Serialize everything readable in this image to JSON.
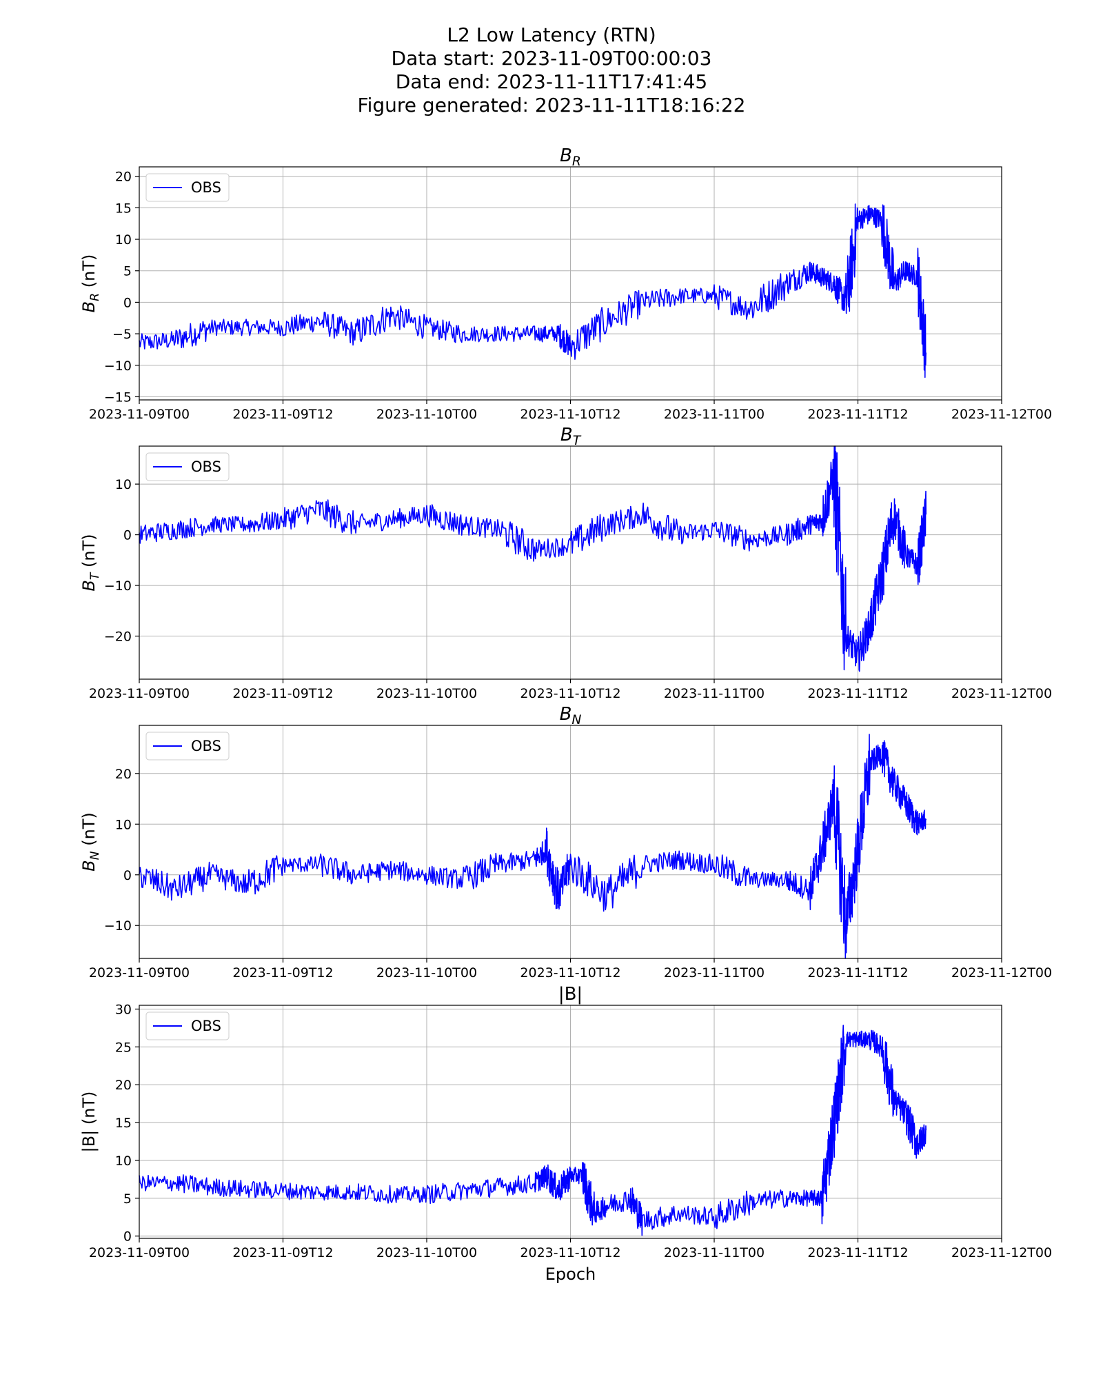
{
  "title_lines": [
    "L2 Low Latency (RTN)",
    "Data start: 2023-11-09T00:00:03",
    "Data end: 2023-11-11T17:41:45",
    "Figure generated: 2023-11-11T18:16:22"
  ],
  "colors": {
    "series": "#0000ff",
    "grid": "#b0b0b0",
    "axes": "#000000"
  },
  "chart_data": [
    {
      "type": "line",
      "title": "B_R",
      "ylabel": "B_R (nT)",
      "xlabel": "",
      "xlim": [
        "2023-11-09T00:00",
        "2023-11-12T00:00"
      ],
      "ylim": [
        -15.5,
        21.5
      ],
      "yticks": [
        -15,
        -10,
        -5,
        0,
        5,
        10,
        15,
        20
      ],
      "xticks": [
        "2023-11-09T00",
        "2023-11-09T12",
        "2023-11-10T00",
        "2023-11-10T12",
        "2023-11-11T00",
        "2023-11-11T12",
        "2023-11-12T00"
      ],
      "grid": true,
      "legend": "upper left",
      "series": [
        {
          "name": "OBS",
          "x": [
            "2023-11-09T00:00",
            "2023-11-09T03:00",
            "2023-11-09T06:00",
            "2023-11-09T09:00",
            "2023-11-09T12:00",
            "2023-11-09T15:00",
            "2023-11-09T18:00",
            "2023-11-09T21:00",
            "2023-11-10T00:00",
            "2023-11-10T03:00",
            "2023-11-10T06:00",
            "2023-11-10T09:00",
            "2023-11-10T11:00",
            "2023-11-10T12:00",
            "2023-11-10T15:00",
            "2023-11-10T18:00",
            "2023-11-10T21:00",
            "2023-11-11T00:00",
            "2023-11-11T03:00",
            "2023-11-11T06:00",
            "2023-11-11T08:00",
            "2023-11-11T09:00",
            "2023-11-11T10:00",
            "2023-11-11T11:00",
            "2023-11-11T12:00",
            "2023-11-11T13:00",
            "2023-11-11T14:00",
            "2023-11-11T15:00",
            "2023-11-11T16:00",
            "2023-11-11T17:00",
            "2023-11-11T17:41"
          ],
          "y": [
            -6.5,
            -6,
            -4,
            -4,
            -4,
            -3,
            -5,
            -2,
            -4,
            -5,
            -5,
            -5,
            -5,
            -7,
            -3,
            0,
            1,
            1,
            -1,
            3,
            5,
            4,
            3,
            0,
            13,
            14,
            13,
            3,
            5,
            4,
            -8
          ]
        }
      ]
    },
    {
      "type": "line",
      "title": "B_T",
      "ylabel": "B_T (nT)",
      "xlabel": "",
      "xlim": [
        "2023-11-09T00:00",
        "2023-11-12T00:00"
      ],
      "ylim": [
        -28.5,
        17.5
      ],
      "yticks": [
        -20,
        -10,
        0,
        10
      ],
      "xticks": [
        "2023-11-09T00",
        "2023-11-09T12",
        "2023-11-10T00",
        "2023-11-10T12",
        "2023-11-11T00",
        "2023-11-11T12",
        "2023-11-12T00"
      ],
      "grid": true,
      "legend": "upper left",
      "series": [
        {
          "name": "OBS",
          "x": [
            "2023-11-09T00:00",
            "2023-11-09T03:00",
            "2023-11-09T06:00",
            "2023-11-09T09:00",
            "2023-11-09T12:00",
            "2023-11-09T15:00",
            "2023-11-09T18:00",
            "2023-11-09T21:00",
            "2023-11-10T00:00",
            "2023-11-10T03:00",
            "2023-11-10T06:00",
            "2023-11-10T09:00",
            "2023-11-10T12:00",
            "2023-11-10T15:00",
            "2023-11-10T18:00",
            "2023-11-10T21:00",
            "2023-11-11T00:00",
            "2023-11-11T03:00",
            "2023-11-11T06:00",
            "2023-11-11T08:00",
            "2023-11-11T09:00",
            "2023-11-11T10:00",
            "2023-11-11T11:00",
            "2023-11-11T12:00",
            "2023-11-11T13:00",
            "2023-11-11T14:00",
            "2023-11-11T15:00",
            "2023-11-11T16:00",
            "2023-11-11T17:00",
            "2023-11-11T17:41"
          ],
          "y": [
            0,
            1,
            2,
            2,
            3,
            5,
            2,
            3,
            4,
            2,
            1,
            -3,
            -2,
            2,
            4,
            0,
            1,
            -1,
            0,
            2,
            3,
            12,
            -20,
            -24,
            -18,
            -8,
            4,
            -4,
            -6,
            4
          ]
        }
      ]
    },
    {
      "type": "line",
      "title": "B_N",
      "ylabel": "B_N (nT)",
      "xlabel": "",
      "xlim": [
        "2023-11-09T00:00",
        "2023-11-12T00:00"
      ],
      "ylim": [
        -16.5,
        29.5
      ],
      "yticks": [
        -10,
        0,
        10,
        20
      ],
      "xticks": [
        "2023-11-09T00",
        "2023-11-09T12",
        "2023-11-10T00",
        "2023-11-10T12",
        "2023-11-11T00",
        "2023-11-11T12",
        "2023-11-12T00"
      ],
      "grid": true,
      "legend": "upper left",
      "series": [
        {
          "name": "OBS",
          "x": [
            "2023-11-09T00:00",
            "2023-11-09T03:00",
            "2023-11-09T06:00",
            "2023-11-09T09:00",
            "2023-11-09T12:00",
            "2023-11-09T15:00",
            "2023-11-09T18:00",
            "2023-11-09T21:00",
            "2023-11-10T00:00",
            "2023-11-10T03:00",
            "2023-11-10T06:00",
            "2023-11-10T09:00",
            "2023-11-10T10:00",
            "2023-11-10T11:00",
            "2023-11-10T12:00",
            "2023-11-10T15:00",
            "2023-11-10T18:00",
            "2023-11-10T21:00",
            "2023-11-11T00:00",
            "2023-11-11T03:00",
            "2023-11-11T06:00",
            "2023-11-11T08:00",
            "2023-11-11T09:00",
            "2023-11-11T10:00",
            "2023-11-11T11:00",
            "2023-11-11T12:00",
            "2023-11-11T13:00",
            "2023-11-11T14:00",
            "2023-11-11T15:00",
            "2023-11-11T16:00",
            "2023-11-11T17:00",
            "2023-11-11T17:41"
          ],
          "y": [
            0,
            -3,
            0,
            -2,
            2,
            2,
            0,
            1,
            0,
            -1,
            2,
            3,
            5,
            -4,
            2,
            -4,
            2,
            3,
            2,
            -1,
            -1,
            -3,
            5,
            15,
            -10,
            5,
            22,
            24,
            18,
            14,
            10,
            11
          ]
        }
      ]
    },
    {
      "type": "line",
      "title": "|B|",
      "ylabel": "|B| (nT)",
      "xlabel": "Epoch",
      "xlim": [
        "2023-11-09T00:00",
        "2023-11-12T00:00"
      ],
      "ylim": [
        -0.3,
        30.5
      ],
      "yticks": [
        0,
        5,
        10,
        15,
        20,
        25,
        30
      ],
      "xticks": [
        "2023-11-09T00",
        "2023-11-09T12",
        "2023-11-10T00",
        "2023-11-10T12",
        "2023-11-11T00",
        "2023-11-11T12",
        "2023-11-12T00"
      ],
      "grid": true,
      "legend": "upper left",
      "series": [
        {
          "name": "OBS",
          "x": [
            "2023-11-09T00:00",
            "2023-11-09T03:00",
            "2023-11-09T06:00",
            "2023-11-09T09:00",
            "2023-11-09T12:00",
            "2023-11-09T15:00",
            "2023-11-09T18:00",
            "2023-11-09T21:00",
            "2023-11-10T00:00",
            "2023-11-10T03:00",
            "2023-11-10T06:00",
            "2023-11-10T09:00",
            "2023-11-10T10:00",
            "2023-11-10T11:00",
            "2023-11-10T12:00",
            "2023-11-10T13:00",
            "2023-11-10T14:00",
            "2023-11-10T15:00",
            "2023-11-10T17:00",
            "2023-11-10T18:00",
            "2023-11-10T21:00",
            "2023-11-11T00:00",
            "2023-11-11T03:00",
            "2023-11-11T06:00",
            "2023-11-11T08:00",
            "2023-11-11T09:00",
            "2023-11-11T10:00",
            "2023-11-11T11:00",
            "2023-11-11T12:00",
            "2023-11-11T13:00",
            "2023-11-11T14:00",
            "2023-11-11T15:00",
            "2023-11-11T16:00",
            "2023-11-11T17:00",
            "2023-11-11T17:41"
          ],
          "y": [
            7,
            7,
            6.5,
            6.2,
            6,
            5.8,
            5.8,
            5.5,
            5.5,
            6,
            6.5,
            7,
            8,
            6,
            8,
            8,
            3,
            4,
            5,
            2,
            3,
            2.5,
            4.5,
            5,
            5,
            5,
            15,
            26,
            26,
            26,
            25,
            18,
            16,
            12,
            14
          ]
        }
      ]
    }
  ]
}
